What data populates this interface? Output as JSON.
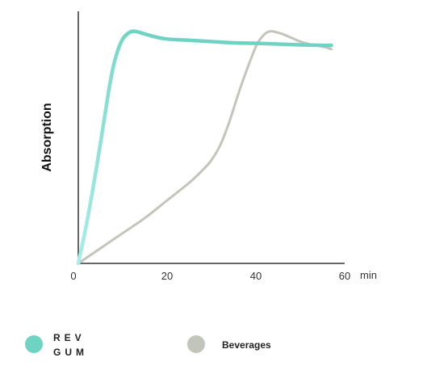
{
  "chart_data": {
    "type": "line",
    "title": "",
    "xlabel": "",
    "x_unit": "min",
    "ylabel": "Absorption",
    "xlim": [
      0,
      60
    ],
    "ylim": [
      0,
      100
    ],
    "x_ticks": [
      0,
      20,
      40,
      60
    ],
    "grid": false,
    "legend_position": "bottom",
    "series": [
      {
        "name": "REV GUM",
        "legend_lines": [
          "REV",
          "GUM"
        ],
        "color": "#6ED3C2",
        "color_start": "#A8EEE8",
        "x": [
          0,
          2,
          4,
          6,
          7,
          8,
          9,
          10,
          11,
          12,
          13,
          15,
          17,
          20,
          25,
          30,
          35,
          40,
          45,
          50,
          55,
          57
        ],
        "y": [
          0,
          17,
          37,
          59,
          70,
          79,
          85,
          89,
          91,
          92,
          92,
          91,
          90,
          89,
          88.5,
          88,
          87.5,
          87.3,
          87,
          86.7,
          86.5,
          86.5
        ]
      },
      {
        "name": "Beverages",
        "legend_lines": [
          "Beverages"
        ],
        "color": "#C2C5BB",
        "color_start": "#C2C5BB",
        "x": [
          0,
          5,
          10,
          15,
          20,
          25,
          28,
          30,
          32,
          34,
          36,
          38,
          40,
          41,
          42,
          43,
          44,
          45,
          46,
          48,
          50,
          52,
          55,
          57
        ],
        "y": [
          0,
          6,
          12,
          18,
          25,
          32,
          37,
          41,
          47,
          56,
          67,
          77,
          86,
          89,
          91,
          92,
          92,
          91.5,
          91,
          89.5,
          88,
          87,
          86,
          85
        ]
      }
    ]
  }
}
